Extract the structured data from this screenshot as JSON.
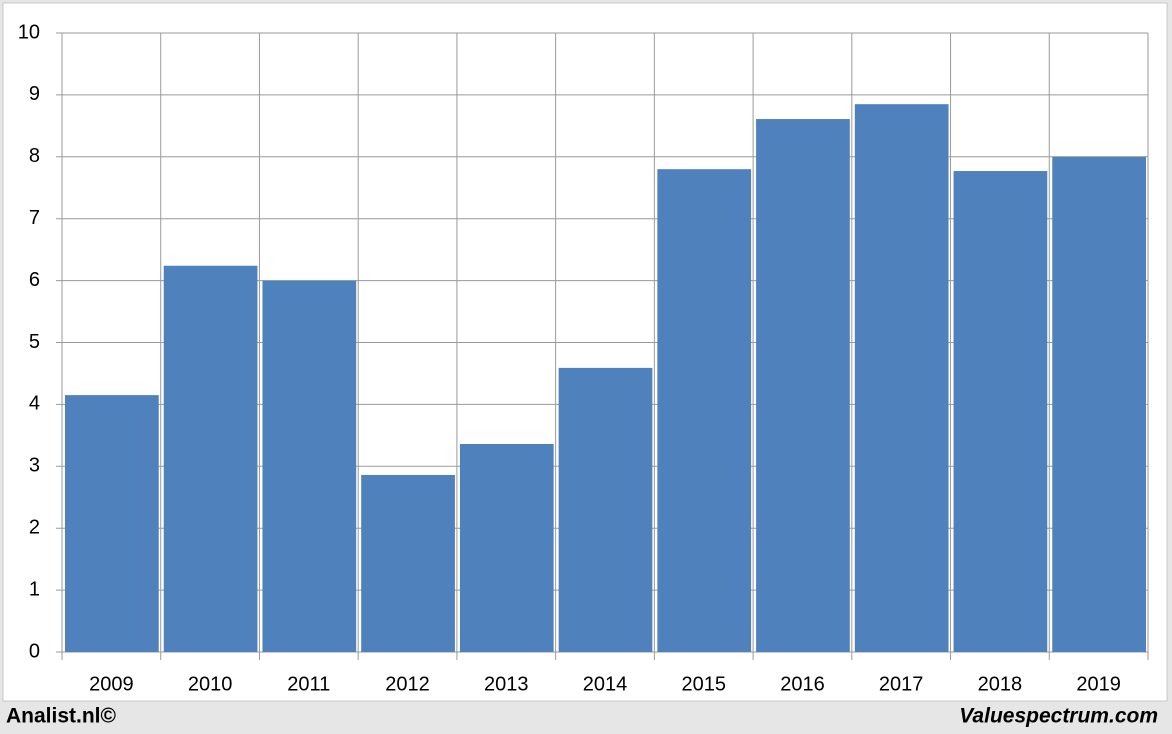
{
  "chart_data": {
    "type": "bar",
    "categories": [
      "2009",
      "2010",
      "2011",
      "2012",
      "2013",
      "2014",
      "2015",
      "2016",
      "2017",
      "2018",
      "2019"
    ],
    "values": [
      4.15,
      6.24,
      6.0,
      2.86,
      3.36,
      4.59,
      7.8,
      8.61,
      8.85,
      7.77,
      8.0
    ],
    "color": "#4f81bd",
    "ylim": [
      0,
      10
    ],
    "yticks": [
      0,
      1,
      2,
      3,
      4,
      5,
      6,
      7,
      8,
      9,
      10
    ],
    "grid": true,
    "source": "Analist.nl©",
    "credit": "Valuespectrum.com"
  }
}
